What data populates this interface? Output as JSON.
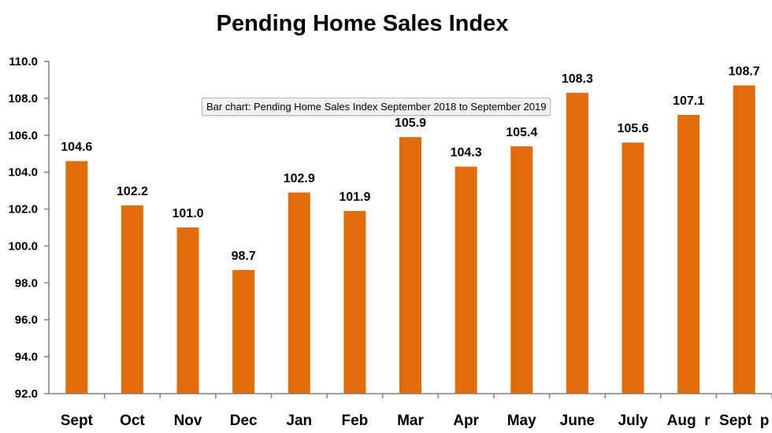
{
  "chart_data": {
    "type": "bar",
    "title": "Pending Home Sales Index",
    "categories": [
      "Sept",
      "Oct",
      "Nov",
      "Dec",
      "Jan",
      "Feb",
      "Mar",
      "Apr",
      "May",
      "June",
      "July",
      "Aug  r",
      "Sept  p"
    ],
    "values": [
      104.6,
      102.2,
      101.0,
      98.7,
      102.9,
      101.9,
      105.9,
      104.3,
      105.4,
      108.3,
      105.6,
      107.1,
      108.7
    ],
    "value_labels": [
      "104.6",
      "102.2",
      "101.0",
      "98.7",
      "102.9",
      "101.9",
      "105.9",
      "104.3",
      "105.4",
      "108.3",
      "105.6",
      "107.1",
      "108.7"
    ],
    "ylim": [
      92.0,
      110.0
    ],
    "yticks": [
      "92.0",
      "94.0",
      "96.0",
      "98.0",
      "100.0",
      "102.0",
      "104.0",
      "106.0",
      "108.0",
      "110.0"
    ],
    "xlabel": "",
    "ylabel": "",
    "grid": false,
    "bar_color": "#e36c0a"
  },
  "tooltip": "Bar chart: Pending Home Sales Index September 2018 to September 2019"
}
